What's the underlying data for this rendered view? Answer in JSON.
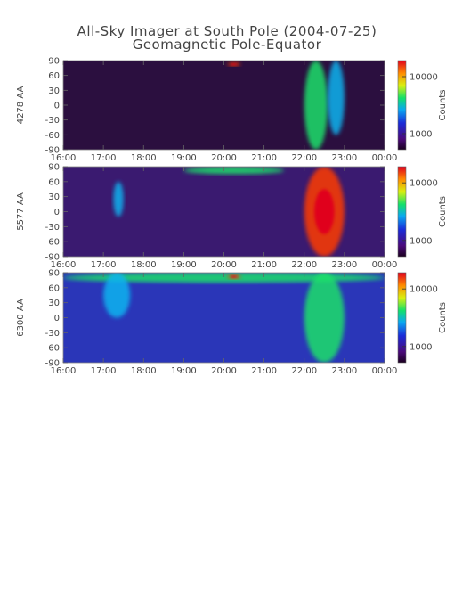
{
  "chart_data": [
    {
      "type": "heatmap",
      "title": "All-Sky Imager at South Pole (2004-07-25)",
      "subtitle": "Geomagnetic Pole-Equator",
      "ylabel": "4278 AA",
      "colorbar_label": "Counts",
      "colorbar_ticks": [
        "10000",
        "1000"
      ],
      "x_ticks": [
        "16:00",
        "17:00",
        "18:00",
        "19:00",
        "20:00",
        "21:00",
        "22:00",
        "23:00",
        "00:00"
      ],
      "y_ticks": [
        "90",
        "60",
        "30",
        "0",
        "-30",
        "-60",
        "-90"
      ],
      "ylim": [
        -90,
        90
      ],
      "xlim": [
        "16:00",
        "00:00"
      ],
      "colorscale": "rainbow (dark purple low to red high), log scale",
      "features": [
        {
          "time_start": "20:05",
          "time_end": "20:25",
          "lat_start": 80,
          "lat_end": 85,
          "level": "high"
        },
        {
          "time_start": "22:00",
          "time_end": "22:35",
          "lat_start": -90,
          "lat_end": 90,
          "level": "medium-high"
        },
        {
          "time_start": "22:35",
          "time_end": "23:00",
          "lat_start": -60,
          "lat_end": 90,
          "level": "medium"
        }
      ]
    },
    {
      "type": "heatmap",
      "ylabel": "5577 AA",
      "colorbar_label": "Counts",
      "colorbar_ticks": [
        "10000",
        "1000"
      ],
      "x_ticks": [
        "16:00",
        "17:00",
        "18:00",
        "19:00",
        "20:00",
        "21:00",
        "22:00",
        "23:00",
        "00:00"
      ],
      "y_ticks": [
        "90",
        "60",
        "30",
        "0",
        "-30",
        "-60",
        "-90"
      ],
      "ylim": [
        -90,
        90
      ],
      "xlim": [
        "16:00",
        "00:00"
      ],
      "colorscale": "rainbow (dark purple low to red high), log scale",
      "features": [
        {
          "time_start": "19:00",
          "time_end": "21:30",
          "lat_start": 75,
          "lat_end": 90,
          "level": "medium-high"
        },
        {
          "time_start": "17:15",
          "time_end": "17:30",
          "lat_start": -10,
          "lat_end": 60,
          "level": "medium"
        },
        {
          "time_start": "22:00",
          "time_end": "23:00",
          "lat_start": -90,
          "lat_end": 90,
          "level": "high"
        }
      ]
    },
    {
      "type": "heatmap",
      "ylabel": "6300 AA",
      "colorbar_label": "Counts",
      "colorbar_ticks": [
        "10000",
        "1000"
      ],
      "x_ticks": [
        "16:00",
        "17:00",
        "18:00",
        "19:00",
        "20:00",
        "21:00",
        "22:00",
        "23:00",
        "00:00"
      ],
      "y_ticks": [
        "90",
        "60",
        "30",
        "0",
        "-30",
        "-60",
        "-90"
      ],
      "ylim": [
        -90,
        90
      ],
      "xlim": [
        "16:00",
        "00:00"
      ],
      "colorscale": "rainbow (dark purple low to red high), log scale",
      "features": [
        {
          "time_start": "16:00",
          "time_end": "00:00",
          "lat_start": 70,
          "lat_end": 90,
          "level": "medium-high"
        },
        {
          "time_start": "20:05",
          "time_end": "20:25",
          "lat_start": 78,
          "lat_end": 86,
          "level": "high"
        },
        {
          "time_start": "17:00",
          "time_end": "17:40",
          "lat_start": 0,
          "lat_end": 90,
          "level": "medium"
        },
        {
          "time_start": "22:00",
          "time_end": "23:00",
          "lat_start": -90,
          "lat_end": 90,
          "level": "medium-high"
        }
      ]
    }
  ]
}
